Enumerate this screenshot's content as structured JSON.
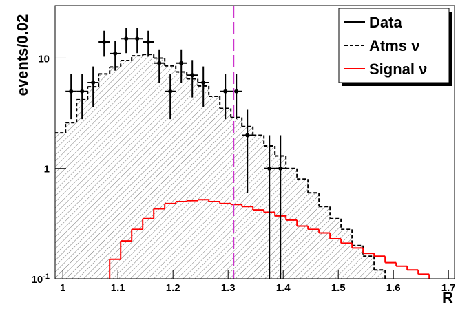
{
  "chart_data": {
    "type": "histogram",
    "x_label": "R",
    "y_label": "events/0.02",
    "bins": [
      0.985,
      1.005,
      1.025,
      1.045,
      1.065,
      1.085,
      1.105,
      1.125,
      1.145,
      1.165,
      1.185,
      1.205,
      1.225,
      1.245,
      1.265,
      1.285,
      1.305,
      1.325,
      1.345,
      1.365,
      1.385,
      1.405,
      1.425,
      1.445,
      1.465,
      1.485,
      1.505,
      1.525,
      1.545,
      1.565,
      1.585,
      1.605,
      1.625,
      1.645,
      1.665,
      1.685,
      1.705
    ],
    "series": [
      {
        "name": "Atms ν",
        "color": "#000000",
        "style": "dashed",
        "hatched": true,
        "values": [
          2.1,
          2.6,
          4.2,
          5.5,
          7.2,
          8.3,
          9.5,
          10.5,
          10.8,
          10,
          8.5,
          7.5,
          6.5,
          5.6,
          4.5,
          3.5,
          2.9,
          2.4,
          2.0,
          1.6,
          1.3,
          1.0,
          0.8,
          0.6,
          0.45,
          0.35,
          0.28,
          0.2,
          0.16,
          0.12,
          null,
          null,
          null,
          null,
          null,
          null
        ]
      },
      {
        "name": "Signal ν",
        "color": "#ff0000",
        "style": "solid",
        "hatched": false,
        "values": [
          null,
          null,
          null,
          null,
          null,
          0.15,
          0.22,
          0.28,
          0.35,
          0.43,
          0.48,
          0.5,
          0.51,
          0.52,
          0.5,
          0.48,
          0.47,
          0.45,
          0.42,
          0.4,
          0.37,
          0.34,
          0.3,
          0.28,
          0.26,
          0.23,
          0.21,
          0.19,
          0.17,
          0.16,
          0.14,
          0.13,
          0.12,
          0.11,
          null,
          null
        ]
      },
      {
        "name": "Data",
        "color": "#000000",
        "style": "points",
        "values": [
          null,
          5,
          5,
          6,
          14,
          11,
          15,
          15,
          14,
          9,
          5,
          9,
          7,
          6,
          null,
          5,
          5,
          2,
          null,
          1,
          1,
          null,
          null,
          null,
          null,
          null,
          null,
          null,
          null,
          null,
          null,
          null,
          null,
          null,
          null,
          null
        ],
        "errors": [
          null,
          2.2,
          2.2,
          2.4,
          3.7,
          3.3,
          3.9,
          3.9,
          3.7,
          3,
          2.2,
          3,
          2.6,
          2.4,
          null,
          2.2,
          2.2,
          1.4,
          null,
          1,
          1,
          null,
          null,
          null,
          null,
          null,
          null,
          null,
          null,
          null,
          null,
          null,
          null,
          null,
          null,
          null
        ]
      }
    ],
    "legend_order": [
      2,
      0,
      1
    ],
    "legend": "top-right",
    "cut_line": {
      "x": 1.31,
      "color": "#cc33cc"
    },
    "xlim": [
      0.986,
      1.711
    ],
    "xticks": [
      1,
      1.1,
      1.2,
      1.3,
      1.4,
      1.5,
      1.6,
      1.7
    ],
    "ylim": [
      0.1,
      30
    ],
    "log_y": true,
    "yticks": [
      {
        "value": 0.1,
        "label": "10^-1"
      },
      1,
      10
    ]
  }
}
